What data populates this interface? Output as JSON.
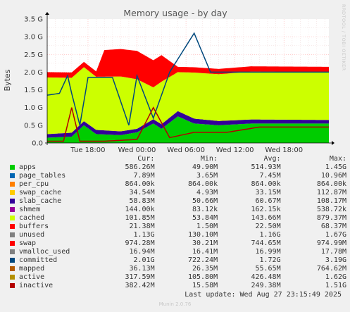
{
  "chart_data": {
    "type": "area",
    "title": "Memory usage - by day",
    "ylabel": "Bytes",
    "watermark": "RRDTOOL / TOBI OETIKER",
    "y_ticks": [
      "0.0",
      "0.5 G",
      "1.0 G",
      "1.5 G",
      "2.0 G",
      "2.5 G",
      "3.0 G",
      "3.5 G"
    ],
    "ylim": [
      0,
      3.5
    ],
    "y_unit": "G",
    "x_ticks": [
      "Tue 18:00",
      "Wed 00:00",
      "Wed 06:00",
      "Wed 12:00",
      "Wed 18:00"
    ],
    "x_tick_hours": [
      18,
      24,
      30,
      36,
      42
    ],
    "x_range_hours": [
      13,
      47.5
    ],
    "grid": true,
    "colors": {
      "apps": "#00cc00",
      "page_tables": "#0066b3",
      "per_cpu": "#ff8000",
      "swap_cache": "#ffcc00",
      "slab_cache": "#330099",
      "shmem": "#990099",
      "cached": "#ccff00",
      "buffers": "#ff0000",
      "unused": "#808080",
      "swap": "#ff0000",
      "vmalloc_used": "#808080",
      "committed": "#00487d",
      "mapped": "#b35a00",
      "active": "#b38f00",
      "inactive": "#b30000"
    },
    "series_estimates": [
      {
        "name": "apps",
        "x": [
          13,
          16,
          17.5,
          19,
          22,
          24,
          26,
          27,
          29,
          31,
          34,
          38,
          42,
          47.5
        ],
        "values": [
          0.15,
          0.18,
          0.5,
          0.25,
          0.22,
          0.3,
          0.55,
          0.4,
          0.75,
          0.55,
          0.5,
          0.55,
          0.55,
          0.55
        ]
      },
      {
        "name": "slab_cache",
        "x": [
          13,
          19,
          24,
          29,
          34,
          47.5
        ],
        "values": [
          0.1,
          0.12,
          0.1,
          0.15,
          0.12,
          0.1
        ]
      },
      {
        "name": "cached",
        "x": [
          13,
          16,
          19,
          22,
          24,
          26,
          27,
          29,
          31,
          38,
          47.5
        ],
        "values": [
          1.6,
          1.55,
          1.5,
          1.55,
          1.4,
          0.9,
          1.2,
          1.1,
          1.3,
          1.35,
          1.35
        ]
      },
      {
        "name": "swap",
        "x": [
          13,
          19,
          20,
          24,
          27,
          29,
          47.5
        ],
        "values": [
          0.15,
          0.15,
          0.75,
          0.8,
          0.75,
          0.15,
          0.15
        ]
      },
      {
        "name": "committed",
        "x": [
          13,
          14.5,
          15.5,
          16,
          17,
          18,
          19,
          21,
          23,
          24,
          26,
          28,
          31,
          33,
          47.5
        ],
        "values": [
          1.35,
          1.4,
          1.9,
          1.4,
          0.5,
          1.85,
          1.85,
          1.85,
          0.5,
          1.9,
          0.7,
          2.0,
          3.1,
          2.0,
          2.0
        ]
      },
      {
        "name": "inactive",
        "x": [
          13,
          15,
          16,
          17,
          20,
          24,
          26,
          28,
          31,
          35,
          39,
          43,
          47.5
        ],
        "values": [
          0.05,
          0.05,
          1.0,
          0.05,
          0.05,
          0.1,
          1.0,
          0.15,
          0.3,
          0.3,
          0.45,
          0.45,
          0.45
        ]
      }
    ]
  },
  "legend": {
    "headers": {
      "cur": "Cur:",
      "min": "Min:",
      "avg": "Avg:",
      "max": "Max:"
    },
    "rows": [
      {
        "name": "apps",
        "cur": "586.26M",
        "min": "49.90M",
        "avg": "514.93M",
        "max": "1.45G",
        "color": "#00cc00"
      },
      {
        "name": "page_tables",
        "cur": "7.89M",
        "min": "3.65M",
        "avg": "7.45M",
        "max": "10.96M",
        "color": "#0066b3"
      },
      {
        "name": "per_cpu",
        "cur": "864.00k",
        "min": "864.00k",
        "avg": "864.00k",
        "max": "864.00k",
        "color": "#ff8000"
      },
      {
        "name": "swap_cache",
        "cur": "34.54M",
        "min": "4.93M",
        "avg": "33.15M",
        "max": "112.87M",
        "color": "#ffcc00"
      },
      {
        "name": "slab_cache",
        "cur": "58.83M",
        "min": "50.66M",
        "avg": "60.67M",
        "max": "108.17M",
        "color": "#330099"
      },
      {
        "name": "shmem",
        "cur": "144.00k",
        "min": "83.12k",
        "avg": "162.15k",
        "max": "538.72k",
        "color": "#990099"
      },
      {
        "name": "cached",
        "cur": "101.85M",
        "min": "53.84M",
        "avg": "143.66M",
        "max": "879.37M",
        "color": "#ccff00"
      },
      {
        "name": "buffers",
        "cur": "21.38M",
        "min": "1.50M",
        "avg": "22.50M",
        "max": "68.37M",
        "color": "#ff0000"
      },
      {
        "name": "unused",
        "cur": "1.13G",
        "min": "130.10M",
        "avg": "1.16G",
        "max": "1.67G",
        "color": "#808080"
      },
      {
        "name": "swap",
        "cur": "974.28M",
        "min": "30.21M",
        "avg": "744.65M",
        "max": "974.99M",
        "color": "#ff0000"
      },
      {
        "name": "vmalloc_used",
        "cur": "16.94M",
        "min": "16.41M",
        "avg": "16.99M",
        "max": "17.78M",
        "color": "#808080"
      },
      {
        "name": "committed",
        "cur": "2.01G",
        "min": "722.24M",
        "avg": "1.72G",
        "max": "3.19G",
        "color": "#00487d"
      },
      {
        "name": "mapped",
        "cur": "36.13M",
        "min": "26.35M",
        "avg": "55.65M",
        "max": "764.62M",
        "color": "#b35a00"
      },
      {
        "name": "active",
        "cur": "317.59M",
        "min": "105.80M",
        "avg": "426.48M",
        "max": "1.62G",
        "color": "#b38f00"
      },
      {
        "name": "inactive",
        "cur": "382.42M",
        "min": "15.58M",
        "avg": "249.38M",
        "max": "1.51G",
        "color": "#b30000"
      }
    ]
  },
  "footer": {
    "last_update": "Last update: Wed Aug 27 23:15:49 2025",
    "munin": "Munin 2.0.76"
  }
}
